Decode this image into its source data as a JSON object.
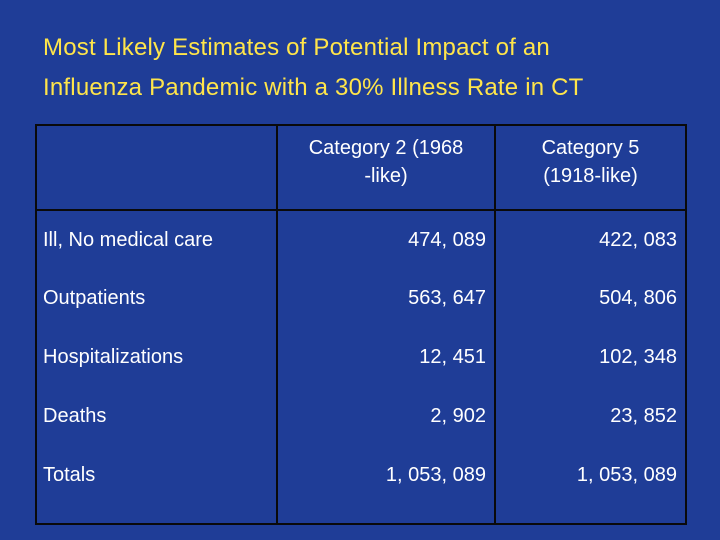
{
  "slide": {
    "title_line1": "Most Likely Estimates of Potential Impact of an",
    "title_line2": "Influenza Pandemic with a 30% Illness Rate in CT",
    "colors": {
      "background": "#1f3d97",
      "title": "#ffe54a",
      "table_text": "#ffffff",
      "grid": "#0a0a0a"
    }
  },
  "table": {
    "headers": [
      {
        "line1": "",
        "line2": ""
      },
      {
        "line1": "Category 2 (1968",
        "line2": "-like)"
      },
      {
        "line1": "Category 5",
        "line2": "(1918-like)"
      }
    ],
    "rows": [
      {
        "label": "Ill, No medical care",
        "cat2": "474, 089",
        "cat5": "422, 083"
      },
      {
        "label": "Outpatients",
        "cat2": "563, 647",
        "cat5": "504, 806"
      },
      {
        "label": "Hospitalizations",
        "cat2": "12, 451",
        "cat5": "102, 348"
      },
      {
        "label": "Deaths",
        "cat2": "2, 902",
        "cat5": "23, 852"
      },
      {
        "label": "Totals",
        "cat2": "1, 053, 089",
        "cat5": "1, 053, 089"
      }
    ]
  }
}
